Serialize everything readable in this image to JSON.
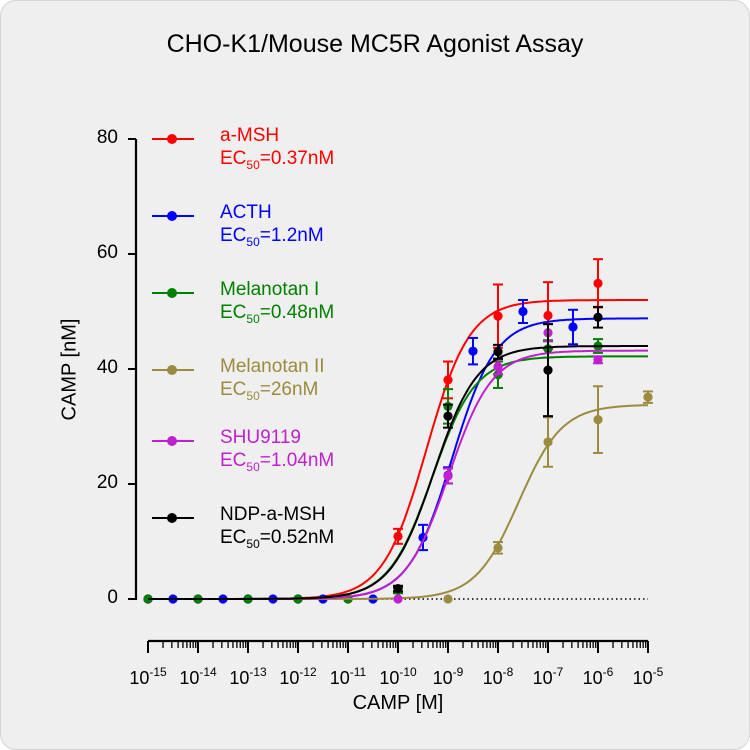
{
  "chart_data": {
    "type": "scatter",
    "title": "CHO-K1/Mouse MC5R Agonist Assay",
    "xlabel": "CAMP [M]",
    "ylabel": "CAMP [nM]",
    "xscale": "log",
    "xlim": [
      1e-15,
      1e-05
    ],
    "ylim": [
      0,
      80
    ],
    "x_ticks": [
      {
        "base": "10",
        "exp": "-15"
      },
      {
        "base": "10",
        "exp": "-14"
      },
      {
        "base": "10",
        "exp": "-13"
      },
      {
        "base": "10",
        "exp": "-12"
      },
      {
        "base": "10",
        "exp": "-11"
      },
      {
        "base": "10",
        "exp": "-10"
      },
      {
        "base": "10",
        "exp": "-9"
      },
      {
        "base": "10",
        "exp": "-8"
      },
      {
        "base": "10",
        "exp": "-7"
      },
      {
        "base": "10",
        "exp": "-6"
      },
      {
        "base": "10",
        "exp": "-5"
      }
    ],
    "y_ticks": [
      "0",
      "20",
      "40",
      "60",
      "80"
    ],
    "legend_position": "top-left",
    "baseline": "dotted line at y=0",
    "series": [
      {
        "name": "a-MSH",
        "ec50_label": "EC",
        "ec50_sub": "50",
        "ec50_value": "=0.37nM",
        "color": "#ff0000",
        "fit": {
          "bottom": 0,
          "top": 52,
          "ec50": 3.7e-10
        },
        "points": [
          {
            "x": 1e-15,
            "y": 0,
            "err": 0
          },
          {
            "x": 1e-14,
            "y": 0,
            "err": 0
          },
          {
            "x": 1e-13,
            "y": 0,
            "err": 0
          },
          {
            "x": 1e-12,
            "y": 0,
            "err": 0
          },
          {
            "x": 1e-11,
            "y": 0,
            "err": 0
          },
          {
            "x": 1e-10,
            "y": 10.9,
            "err": 1.3
          },
          {
            "x": 1e-09,
            "y": 38.1,
            "err": 3.2
          },
          {
            "x": 1e-08,
            "y": 49.2,
            "err": 5.5
          },
          {
            "x": 1e-07,
            "y": 49.3,
            "err": 5.8
          },
          {
            "x": 1e-06,
            "y": 54.9,
            "err": 4.2
          }
        ]
      },
      {
        "name": "ACTH",
        "ec50_label": "EC",
        "ec50_sub": "50",
        "ec50_value": "=1.2nM",
        "color": "#0000ff",
        "fit": {
          "bottom": 0,
          "top": 48.8,
          "ec50": 1.2e-09
        },
        "points": [
          {
            "x": 1e-15,
            "y": 0,
            "err": 0
          },
          {
            "x": 3.16e-15,
            "y": 0,
            "err": 0
          },
          {
            "x": 1e-14,
            "y": 0,
            "err": 0
          },
          {
            "x": 3.16e-14,
            "y": 0,
            "err": 0
          },
          {
            "x": 1e-13,
            "y": 0,
            "err": 0
          },
          {
            "x": 3.16e-13,
            "y": 0,
            "err": 0
          },
          {
            "x": 1e-12,
            "y": 0,
            "err": 0
          },
          {
            "x": 3.16e-12,
            "y": 0,
            "err": 0
          },
          {
            "x": 3.16e-11,
            "y": 0,
            "err": 0
          },
          {
            "x": 3.16e-10,
            "y": 10.7,
            "err": 2.2
          },
          {
            "x": 1e-09,
            "y": 21.5,
            "err": 1.4
          },
          {
            "x": 3.16e-09,
            "y": 43.1,
            "err": 2.3
          },
          {
            "x": 3.16e-08,
            "y": 50.0,
            "err": 2.0
          },
          {
            "x": 3.16e-07,
            "y": 47.3,
            "err": 3.0
          }
        ]
      },
      {
        "name": "Melanotan I",
        "ec50_label": "EC",
        "ec50_sub": "50",
        "ec50_value": "=0.48nM",
        "color": "#008000",
        "fit": {
          "bottom": 0,
          "top": 42.2,
          "ec50": 4.8e-10
        },
        "points": [
          {
            "x": 1e-15,
            "y": 0,
            "err": 0
          },
          {
            "x": 1e-14,
            "y": 0,
            "err": 0
          },
          {
            "x": 1e-13,
            "y": 0,
            "err": 0
          },
          {
            "x": 1e-12,
            "y": 0,
            "err": 0
          },
          {
            "x": 1e-11,
            "y": 0,
            "err": 0
          },
          {
            "x": 1e-10,
            "y": 1.5,
            "err": 0.5
          },
          {
            "x": 1e-09,
            "y": 33.5,
            "err": 3.0
          },
          {
            "x": 1e-08,
            "y": 39.0,
            "err": 2.3
          },
          {
            "x": 1e-07,
            "y": 43.5,
            "err": 1.5
          },
          {
            "x": 1e-06,
            "y": 44.0,
            "err": 1.2
          }
        ]
      },
      {
        "name": "Melanotan II",
        "ec50_label": "EC",
        "ec50_sub": "50",
        "ec50_value": "=26nM",
        "color": "#9c8a3e",
        "fit": {
          "bottom": 0,
          "top": 33.8,
          "ec50": 2.6e-08
        },
        "points": [
          {
            "x": 1e-09,
            "y": 0,
            "err": 0
          },
          {
            "x": 1e-08,
            "y": 8.9,
            "err": 1.0
          },
          {
            "x": 1e-07,
            "y": 27.3,
            "err": 4.3
          },
          {
            "x": 1e-06,
            "y": 31.2,
            "err": 5.8
          },
          {
            "x": 1e-05,
            "y": 35.1,
            "err": 1.0
          }
        ]
      },
      {
        "name": "SHU9119",
        "ec50_label": "EC",
        "ec50_sub": "50",
        "ec50_value": "=1.04nM",
        "color": "#c020d0",
        "fit": {
          "bottom": 0,
          "top": 43.2,
          "ec50": 1.04e-09
        },
        "points": [
          {
            "x": 1e-10,
            "y": 0,
            "err": 0
          },
          {
            "x": 1e-09,
            "y": 21.4,
            "err": 1.3
          },
          {
            "x": 1e-08,
            "y": 40.4,
            "err": 1.3
          },
          {
            "x": 1e-07,
            "y": 46.3,
            "err": 1.5
          },
          {
            "x": 1e-06,
            "y": 41.6,
            "err": 0.6
          }
        ]
      },
      {
        "name": "NDP-a-MSH",
        "ec50_label": "EC",
        "ec50_sub": "50",
        "ec50_value": "=0.52nM",
        "color": "#000000",
        "fit": {
          "bottom": 0,
          "top": 44.0,
          "ec50": 5.2e-10
        },
        "points": [
          {
            "x": 1e-10,
            "y": 1.8,
            "err": 0.5
          },
          {
            "x": 1e-09,
            "y": 31.8,
            "err": 2.0
          },
          {
            "x": 1e-08,
            "y": 43.0,
            "err": 1.2
          },
          {
            "x": 1e-07,
            "y": 39.8,
            "err": 8.0
          },
          {
            "x": 1e-06,
            "y": 49.0,
            "err": 1.8
          }
        ]
      }
    ]
  }
}
